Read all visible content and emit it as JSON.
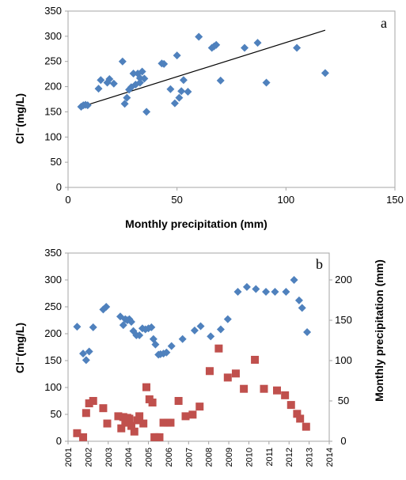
{
  "chart_data": [
    {
      "type": "scatter",
      "panel_label": "a",
      "xlabel": "Monthly precipitation (mm)",
      "ylabel": "Cl⁻(mg/L)",
      "xlim": [
        0,
        150
      ],
      "ylim": [
        0,
        350
      ],
      "x_ticks": [
        "0",
        "50",
        "100",
        "150"
      ],
      "y_ticks": [
        "0",
        "50",
        "100",
        "150",
        "200",
        "250",
        "300",
        "350"
      ],
      "grid": false,
      "colors": {
        "points": "#4F81BD",
        "trendline": "#000000"
      },
      "trendline": {
        "x": [
          6,
          118
        ],
        "y": [
          160,
          312
        ]
      },
      "points": [
        [
          6,
          160
        ],
        [
          7,
          163
        ],
        [
          8,
          164
        ],
        [
          9,
          163
        ],
        [
          14,
          196
        ],
        [
          15,
          213
        ],
        [
          18,
          208
        ],
        [
          19,
          215
        ],
        [
          21,
          206
        ],
        [
          25,
          250
        ],
        [
          26,
          166
        ],
        [
          27,
          178
        ],
        [
          28,
          194
        ],
        [
          29,
          199
        ],
        [
          30,
          226
        ],
        [
          31,
          204
        ],
        [
          32,
          226
        ],
        [
          33,
          217
        ],
        [
          33,
          208
        ],
        [
          34,
          230
        ],
        [
          35,
          216
        ],
        [
          36,
          150
        ],
        [
          43,
          246
        ],
        [
          44,
          245
        ],
        [
          47,
          195
        ],
        [
          49,
          167
        ],
        [
          50,
          262
        ],
        [
          51,
          178
        ],
        [
          52,
          191
        ],
        [
          53,
          213
        ],
        [
          55,
          190
        ],
        [
          60,
          299
        ],
        [
          66,
          277
        ],
        [
          67,
          280
        ],
        [
          68,
          283
        ],
        [
          70,
          212
        ],
        [
          81,
          277
        ],
        [
          87,
          287
        ],
        [
          91,
          208
        ],
        [
          105,
          277
        ],
        [
          118,
          227
        ]
      ]
    },
    {
      "type": "scatter",
      "panel_label": "b",
      "ylabel_left": "Cl⁻(mg/L)",
      "ylabel_right": "Monthly precipitation (mm)",
      "xlim": [
        2001,
        2014
      ],
      "ylim_left": [
        0,
        350
      ],
      "ylim_right": [
        0,
        233.33
      ],
      "x_ticks": [
        "2001",
        "2002",
        "2003",
        "2004",
        "2005",
        "2006",
        "2007",
        "2008",
        "2009",
        "2010",
        "2011",
        "2012",
        "2013",
        "2014"
      ],
      "y_ticks_left": [
        "0",
        "50",
        "100",
        "150",
        "200",
        "250",
        "300",
        "350"
      ],
      "y_ticks_right": [
        "0",
        "50",
        "100",
        "150",
        "200"
      ],
      "grid": false,
      "colors": {
        "chloride": "#4F81BD",
        "precipitation": "#C0504D"
      },
      "series": [
        {
          "axis": "left",
          "marker": "diamond",
          "points": [
            [
              2001.45,
              213
            ],
            [
              2001.75,
              163
            ],
            [
              2001.9,
              151
            ],
            [
              2002.05,
              167
            ],
            [
              2002.25,
              212
            ],
            [
              2002.75,
              245
            ],
            [
              2002.9,
              250
            ],
            [
              2003.6,
              232
            ],
            [
              2003.75,
              216
            ],
            [
              2003.85,
              227
            ],
            [
              2003.95,
              225
            ],
            [
              2004.05,
              227
            ],
            [
              2004.15,
              222
            ],
            [
              2004.25,
              205
            ],
            [
              2004.4,
              197
            ],
            [
              2004.55,
              197
            ],
            [
              2004.7,
              210
            ],
            [
              2004.85,
              208
            ],
            [
              2005.0,
              210
            ],
            [
              2005.15,
              212
            ],
            [
              2005.25,
              190
            ],
            [
              2005.35,
              180
            ],
            [
              2005.5,
              161
            ],
            [
              2005.6,
              162
            ],
            [
              2005.75,
              163
            ],
            [
              2005.9,
              165
            ],
            [
              2006.15,
              177
            ],
            [
              2006.7,
              190
            ],
            [
              2007.3,
              206
            ],
            [
              2007.6,
              214
            ],
            [
              2008.1,
              195
            ],
            [
              2008.6,
              208
            ],
            [
              2008.95,
              227
            ],
            [
              2009.45,
              278
            ],
            [
              2009.9,
              287
            ],
            [
              2010.35,
              283
            ],
            [
              2010.85,
              278
            ],
            [
              2011.3,
              278
            ],
            [
              2011.85,
              278
            ],
            [
              2012.25,
              300
            ],
            [
              2012.5,
              262
            ],
            [
              2012.65,
              248
            ],
            [
              2012.9,
              203
            ]
          ]
        },
        {
          "axis": "right",
          "marker": "square",
          "points": [
            [
              2001.45,
              10
            ],
            [
              2001.75,
              5
            ],
            [
              2001.9,
              35
            ],
            [
              2002.05,
              47
            ],
            [
              2002.25,
              50
            ],
            [
              2002.75,
              41
            ],
            [
              2002.95,
              22
            ],
            [
              2003.5,
              31
            ],
            [
              2003.65,
              16
            ],
            [
              2003.75,
              30
            ],
            [
              2003.85,
              23
            ],
            [
              2003.95,
              29
            ],
            [
              2004.05,
              28
            ],
            [
              2004.15,
              19
            ],
            [
              2004.3,
              12
            ],
            [
              2004.45,
              26
            ],
            [
              2004.55,
              31
            ],
            [
              2004.75,
              22
            ],
            [
              2004.9,
              67
            ],
            [
              2005.05,
              52
            ],
            [
              2005.2,
              48
            ],
            [
              2005.3,
              5
            ],
            [
              2005.4,
              5
            ],
            [
              2005.55,
              5
            ],
            [
              2005.75,
              23
            ],
            [
              2005.95,
              23
            ],
            [
              2006.1,
              23
            ],
            [
              2006.5,
              50
            ],
            [
              2006.85,
              31
            ],
            [
              2007.2,
              33
            ],
            [
              2007.55,
              43
            ],
            [
              2008.05,
              87
            ],
            [
              2008.5,
              115
            ],
            [
              2008.95,
              79
            ],
            [
              2009.35,
              84
            ],
            [
              2009.75,
              65
            ],
            [
              2010.3,
              101
            ],
            [
              2010.75,
              65
            ],
            [
              2011.4,
              63
            ],
            [
              2011.8,
              57
            ],
            [
              2012.1,
              45
            ],
            [
              2012.4,
              34
            ],
            [
              2012.55,
              28
            ],
            [
              2012.85,
              18
            ]
          ]
        }
      ]
    }
  ]
}
